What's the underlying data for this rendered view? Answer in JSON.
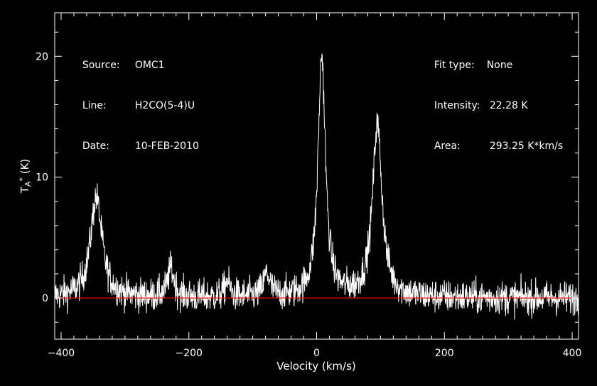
{
  "header": {
    "left": [
      {
        "key": "Source:",
        "value": "OMC1"
      },
      {
        "key": "Line:",
        "value": "H2CO(5-4)U"
      },
      {
        "key": "Date:",
        "value": "10-FEB-2010"
      }
    ],
    "right": [
      {
        "key": "Fit type:",
        "value": "None"
      },
      {
        "key": "Intensity:",
        "value": "22.28 K"
      },
      {
        "key": "Area:",
        "value": "293.25 K*km/s"
      }
    ]
  },
  "colors": {
    "background": "#000000",
    "spectrum": "#ffffff",
    "baseline": "#ff0000",
    "axes": "#ffffff"
  },
  "chart_data": {
    "type": "line",
    "xlabel": "Velocity (km/s)",
    "ylabel": "TA* (K)",
    "xlim": [
      -410,
      410
    ],
    "ylim": [
      -3.4,
      23.6
    ],
    "xticks": [
      -400,
      -200,
      0,
      200,
      400
    ],
    "yticks": [
      0,
      10,
      20
    ],
    "baseline_y": 0,
    "noise_rms": 0.7,
    "v_min": -410,
    "v_max": 410,
    "n_channels": 1640,
    "peaks": [
      {
        "center": -345,
        "amplitude": 8.3,
        "width": 11
      },
      {
        "center": -228,
        "amplitude": 2.4,
        "width": 6
      },
      {
        "center": -140,
        "amplitude": 1.3,
        "width": 5
      },
      {
        "center": -78,
        "amplitude": 1.9,
        "width": 6
      },
      {
        "center": 8,
        "amplitude": 20.0,
        "width": 7
      },
      {
        "center": 95,
        "amplitude": 14.3,
        "width": 9
      }
    ]
  }
}
